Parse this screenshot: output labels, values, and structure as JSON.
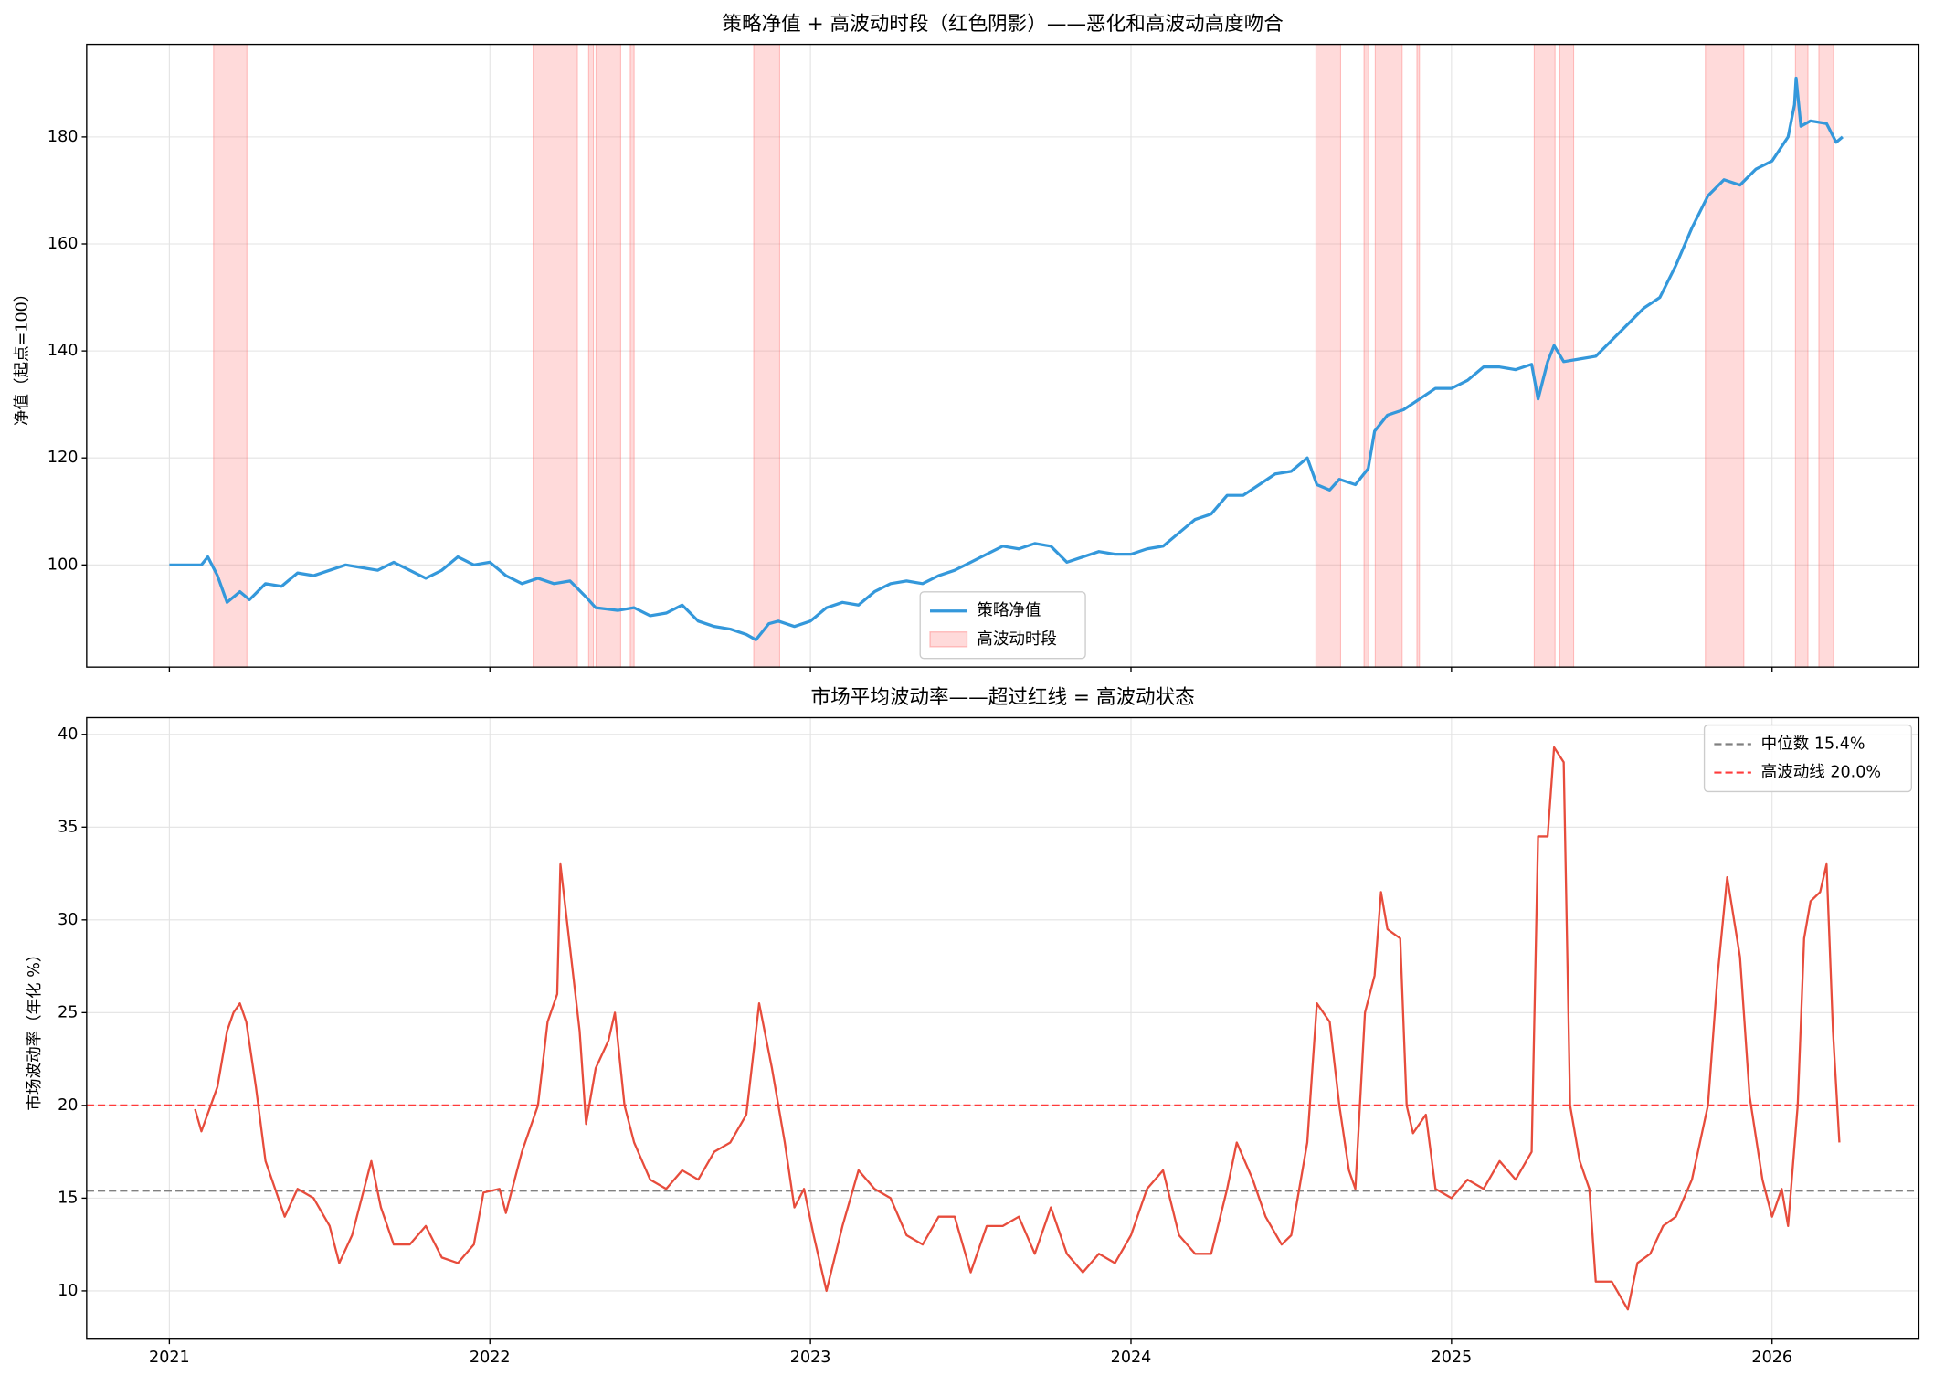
{
  "chart_data": [
    {
      "type": "line",
      "title": "策略净值 + 高波动时段（红色阴影）——恶化和高波动高度吻合",
      "ylabel": "净值（起点=100）",
      "sharex": true,
      "ylim": [
        80.9,
        197.3
      ],
      "yticks": [
        100,
        120,
        140,
        160,
        180
      ],
      "grid": true,
      "legend": "lower center",
      "series": [
        {
          "name": "策略净值",
          "color": "#3498db",
          "x": [
            2021.0,
            2021.1,
            2021.12,
            2021.15,
            2021.18,
            2021.22,
            2021.25,
            2021.3,
            2021.35,
            2021.4,
            2021.45,
            2021.5,
            2021.55,
            2021.6,
            2021.65,
            2021.7,
            2021.75,
            2021.8,
            2021.85,
            2021.9,
            2021.95,
            2022.0,
            2022.05,
            2022.1,
            2022.15,
            2022.2,
            2022.25,
            2022.3,
            2022.33,
            2022.4,
            2022.45,
            2022.5,
            2022.55,
            2022.6,
            2022.65,
            2022.7,
            2022.75,
            2022.8,
            2022.83,
            2022.87,
            2022.9,
            2022.95,
            2023.0,
            2023.05,
            2023.1,
            2023.15,
            2023.2,
            2023.25,
            2023.3,
            2023.35,
            2023.4,
            2023.45,
            2023.5,
            2023.55,
            2023.6,
            2023.65,
            2023.7,
            2023.75,
            2023.8,
            2023.85,
            2023.9,
            2023.95,
            2024.0,
            2024.05,
            2024.1,
            2024.15,
            2024.2,
            2024.25,
            2024.3,
            2024.35,
            2024.4,
            2024.45,
            2024.5,
            2024.55,
            2024.58,
            2024.62,
            2024.65,
            2024.7,
            2024.74,
            2024.76,
            2024.8,
            2024.85,
            2024.9,
            2024.95,
            2025.0,
            2025.05,
            2025.1,
            2025.15,
            2025.2,
            2025.25,
            2025.27,
            2025.3,
            2025.32,
            2025.35,
            2025.4,
            2025.45,
            2025.5,
            2025.55,
            2025.6,
            2025.65,
            2025.7,
            2025.75,
            2025.8,
            2025.85,
            2025.9,
            2025.95,
            2026.0,
            2026.05,
            2026.07,
            2026.075,
            2026.09,
            2026.12,
            2026.17,
            2026.2,
            2026.22
          ],
          "values": [
            100,
            100,
            101.5,
            98,
            93,
            95,
            93.5,
            96.5,
            96,
            98.5,
            98,
            99,
            100,
            99.5,
            99,
            100.5,
            99,
            97.5,
            99,
            101.5,
            100,
            100.5,
            98,
            96.5,
            97.5,
            96.5,
            97,
            94,
            92,
            91.5,
            92,
            90.5,
            91,
            92.5,
            89.5,
            88.5,
            88,
            87,
            86,
            89,
            89.5,
            88.5,
            89.5,
            92,
            93,
            92.5,
            95,
            96.5,
            97,
            96.5,
            98,
            99,
            100.5,
            102,
            103.5,
            103,
            104,
            103.5,
            100.5,
            101.5,
            102.5,
            102,
            102,
            103,
            103.5,
            106,
            108.5,
            109.5,
            113,
            113,
            115,
            117,
            117.5,
            120,
            115,
            114,
            116,
            115,
            118,
            125,
            128,
            129,
            131,
            133,
            133,
            134.5,
            137,
            137,
            136.5,
            137.5,
            131,
            138,
            141,
            138,
            138.5,
            139,
            142,
            145,
            148,
            150,
            156,
            163,
            169,
            172,
            171,
            174,
            175.5,
            180,
            186,
            191,
            182,
            183,
            182.5,
            179,
            180
          ]
        }
      ],
      "shaded_spans": {
        "name": "高波动时段",
        "color": "#ff6b6b",
        "spans": [
          [
            2021.138,
            2021.242
          ],
          [
            2022.135,
            2022.273
          ],
          [
            2022.308,
            2022.323
          ],
          [
            2022.331,
            2022.408
          ],
          [
            2022.438,
            2022.45
          ],
          [
            2022.823,
            2022.904
          ],
          [
            2024.577,
            2024.654
          ],
          [
            2024.727,
            2024.742
          ],
          [
            2024.762,
            2024.846
          ],
          [
            2024.892,
            2024.9
          ],
          [
            2025.258,
            2025.323
          ],
          [
            2025.338,
            2025.381
          ],
          [
            2025.792,
            2025.912
          ],
          [
            2026.073,
            2026.112
          ],
          [
            2026.146,
            2026.192
          ]
        ]
      }
    },
    {
      "type": "line",
      "title": "市场平均波动率——超过红线 = 高波动状态",
      "ylabel": "市场波动率（年化 %）",
      "xlim": [
        2020.742,
        2026.458
      ],
      "xticks": [
        2021,
        2022,
        2023,
        2024,
        2025,
        2026
      ],
      "ylim": [
        7.4,
        40.9
      ],
      "yticks": [
        10,
        15,
        20,
        25,
        30,
        35,
        40
      ],
      "grid": true,
      "legend": "upper right",
      "series": [
        {
          "name": "市场波动率",
          "color": "#e74c3c",
          "x": [
            2021.08,
            2021.1,
            2021.15,
            2021.18,
            2021.2,
            2021.22,
            2021.24,
            2021.27,
            2021.3,
            2021.33,
            2021.36,
            2021.4,
            2021.45,
            2021.5,
            2021.53,
            2021.57,
            2021.6,
            2021.63,
            2021.66,
            2021.7,
            2021.75,
            2021.8,
            2021.85,
            2021.9,
            2021.95,
            2021.98,
            2022.03,
            2022.05,
            2022.1,
            2022.15,
            2022.18,
            2022.21,
            2022.22,
            2022.25,
            2022.28,
            2022.3,
            2022.33,
            2022.37,
            2022.39,
            2022.42,
            2022.45,
            2022.5,
            2022.55,
            2022.6,
            2022.65,
            2022.7,
            2022.75,
            2022.8,
            2022.84,
            2022.88,
            2022.92,
            2022.95,
            2022.98,
            2023.01,
            2023.05,
            2023.1,
            2023.15,
            2023.2,
            2023.25,
            2023.3,
            2023.35,
            2023.4,
            2023.45,
            2023.5,
            2023.55,
            2023.6,
            2023.65,
            2023.7,
            2023.75,
            2023.8,
            2023.85,
            2023.9,
            2023.95,
            2024.0,
            2024.05,
            2024.1,
            2024.15,
            2024.2,
            2024.25,
            2024.3,
            2024.33,
            2024.38,
            2024.42,
            2024.47,
            2024.5,
            2024.55,
            2024.58,
            2024.62,
            2024.65,
            2024.68,
            2024.7,
            2024.73,
            2024.76,
            2024.78,
            2024.8,
            2024.84,
            2024.86,
            2024.88,
            2024.92,
            2024.95,
            2025.0,
            2025.05,
            2025.1,
            2025.15,
            2025.2,
            2025.25,
            2025.27,
            2025.3,
            2025.32,
            2025.35,
            2025.37,
            2025.4,
            2025.43,
            2025.45,
            2025.5,
            2025.55,
            2025.58,
            2025.62,
            2025.66,
            2025.7,
            2025.75,
            2025.8,
            2025.83,
            2025.86,
            2025.9,
            2025.93,
            2025.97,
            2026.0,
            2026.03,
            2026.05,
            2026.08,
            2026.1,
            2026.12,
            2026.15,
            2026.17,
            2026.19,
            2026.21
          ],
          "values": [
            19.8,
            18.6,
            21,
            24,
            25,
            25.5,
            24.5,
            21,
            17,
            15.5,
            14,
            15.5,
            15,
            13.5,
            11.5,
            13,
            15,
            17,
            14.5,
            12.5,
            12.5,
            13.5,
            11.8,
            11.5,
            12.5,
            15.3,
            15.5,
            14.2,
            17.5,
            20,
            24.5,
            26,
            33,
            28.5,
            24,
            19,
            22,
            23.5,
            25,
            20,
            18,
            16,
            15.5,
            16.5,
            16,
            17.5,
            18,
            19.5,
            25.5,
            22,
            18,
            14.5,
            15.5,
            13,
            10,
            13.5,
            16.5,
            15.5,
            15,
            13,
            12.5,
            14,
            14,
            11,
            13.5,
            13.5,
            14,
            12,
            14.5,
            12,
            11,
            12,
            11.5,
            13,
            15.5,
            16.5,
            13,
            12,
            12,
            15.5,
            18,
            16,
            14,
            12.5,
            13,
            18,
            25.5,
            24.5,
            20,
            16.5,
            15.5,
            25,
            27,
            31.5,
            29.5,
            29,
            20,
            18.5,
            19.5,
            15.5,
            15,
            16,
            15.5,
            17,
            16,
            17.5,
            34.5,
            34.5,
            39.3,
            38.5,
            20,
            17,
            15.5,
            10.5,
            10.5,
            9,
            11.5,
            12,
            13.5,
            14,
            16,
            20,
            27,
            32.3,
            28,
            20.5,
            16,
            14,
            15.5,
            13.5,
            20,
            29,
            31,
            31.5,
            33,
            24,
            18
          ]
        }
      ],
      "hlines": [
        {
          "name": "中位数 15.4%",
          "value": 15.4,
          "color": "#808080"
        },
        {
          "name": "高波动线 20.0%",
          "value": 20.0,
          "color": "#ff3b3b"
        }
      ]
    }
  ]
}
